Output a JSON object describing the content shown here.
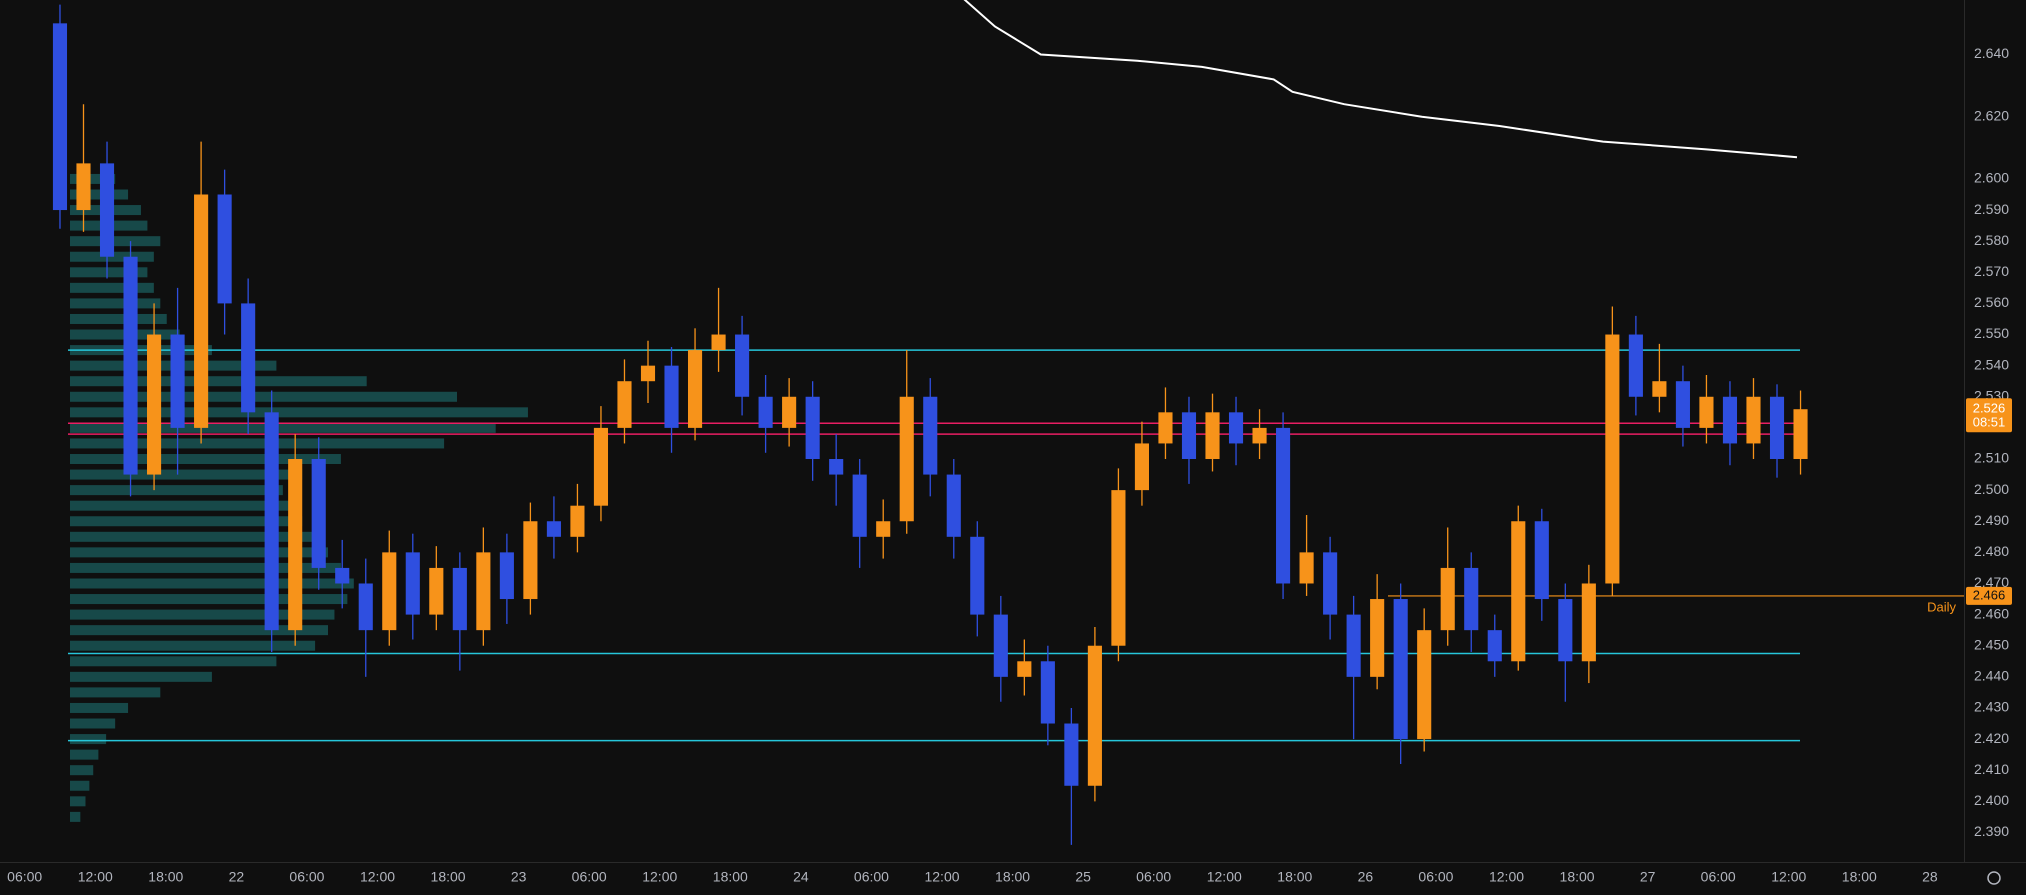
{
  "chart_data": {
    "type": "candlestick",
    "x": [
      9,
      11,
      13,
      15,
      17,
      19,
      21,
      23,
      25,
      27,
      29,
      31,
      33,
      35,
      37,
      39,
      41,
      43,
      45,
      47,
      49,
      51,
      53,
      55,
      57,
      59,
      61,
      63,
      65,
      67,
      69,
      71,
      73,
      75,
      77,
      79,
      81,
      83,
      85,
      87,
      89,
      91,
      93,
      95,
      97,
      99,
      101,
      103,
      105,
      107,
      109,
      111,
      113,
      115,
      117,
      119,
      121,
      123,
      125,
      127,
      129,
      131,
      133,
      135,
      137,
      139,
      141,
      143,
      145,
      147,
      149,
      151,
      153,
      155,
      157
    ],
    "open": [
      2.65,
      2.59,
      2.605,
      2.575,
      2.505,
      2.55,
      2.52,
      2.595,
      2.56,
      2.525,
      2.455,
      2.51,
      2.475,
      2.47,
      2.455,
      2.48,
      2.46,
      2.475,
      2.455,
      2.48,
      2.465,
      2.49,
      2.485,
      2.495,
      2.52,
      2.535,
      2.54,
      2.52,
      2.545,
      2.55,
      2.53,
      2.52,
      2.53,
      2.51,
      2.505,
      2.485,
      2.49,
      2.53,
      2.505,
      2.485,
      2.46,
      2.44,
      2.445,
      2.425,
      2.405,
      2.45,
      2.5,
      2.515,
      2.525,
      2.51,
      2.525,
      2.515,
      2.52,
      2.47,
      2.48,
      2.46,
      2.44,
      2.465,
      2.42,
      2.455,
      2.475,
      2.455,
      2.445,
      2.49,
      2.465,
      2.445,
      2.47,
      2.55,
      2.53,
      2.535,
      2.52,
      2.53,
      2.515,
      2.53,
      2.51
    ],
    "high": [
      2.656,
      2.624,
      2.612,
      2.58,
      2.56,
      2.565,
      2.612,
      2.603,
      2.568,
      2.532,
      2.518,
      2.517,
      2.484,
      2.478,
      2.487,
      2.486,
      2.482,
      2.48,
      2.488,
      2.486,
      2.496,
      2.498,
      2.502,
      2.527,
      2.542,
      2.548,
      2.546,
      2.552,
      2.565,
      2.556,
      2.537,
      2.536,
      2.535,
      2.518,
      2.51,
      2.497,
      2.545,
      2.536,
      2.51,
      2.49,
      2.466,
      2.452,
      2.45,
      2.43,
      2.456,
      2.507,
      2.522,
      2.533,
      2.53,
      2.531,
      2.53,
      2.526,
      2.525,
      2.492,
      2.485,
      2.466,
      2.473,
      2.47,
      2.462,
      2.488,
      2.48,
      2.46,
      2.495,
      2.494,
      2.47,
      2.476,
      2.559,
      2.556,
      2.547,
      2.54,
      2.537,
      2.535,
      2.536,
      2.534,
      2.532
    ],
    "low": [
      2.584,
      2.583,
      2.568,
      2.498,
      2.5,
      2.505,
      2.515,
      2.55,
      2.518,
      2.448,
      2.45,
      2.468,
      2.462,
      2.44,
      2.45,
      2.452,
      2.455,
      2.442,
      2.45,
      2.457,
      2.46,
      2.478,
      2.48,
      2.49,
      2.515,
      2.528,
      2.512,
      2.516,
      2.538,
      2.524,
      2.512,
      2.514,
      2.503,
      2.495,
      2.475,
      2.478,
      2.486,
      2.498,
      2.478,
      2.453,
      2.432,
      2.434,
      2.418,
      2.386,
      2.4,
      2.445,
      2.495,
      2.51,
      2.502,
      2.506,
      2.508,
      2.51,
      2.465,
      2.466,
      2.452,
      2.42,
      2.436,
      2.412,
      2.416,
      2.45,
      2.448,
      2.44,
      2.442,
      2.458,
      2.432,
      2.438,
      2.466,
      2.524,
      2.525,
      2.514,
      2.515,
      2.508,
      2.51,
      2.504,
      2.505
    ],
    "close": [
      2.59,
      2.605,
      2.575,
      2.505,
      2.55,
      2.52,
      2.595,
      2.56,
      2.525,
      2.455,
      2.51,
      2.475,
      2.47,
      2.455,
      2.48,
      2.46,
      2.475,
      2.455,
      2.48,
      2.465,
      2.49,
      2.485,
      2.495,
      2.52,
      2.535,
      2.54,
      2.52,
      2.545,
      2.55,
      2.53,
      2.52,
      2.53,
      2.51,
      2.505,
      2.485,
      2.49,
      2.53,
      2.505,
      2.485,
      2.46,
      2.44,
      2.445,
      2.425,
      2.405,
      2.45,
      2.5,
      2.515,
      2.525,
      2.51,
      2.525,
      2.515,
      2.52,
      2.47,
      2.48,
      2.46,
      2.44,
      2.465,
      2.42,
      2.455,
      2.475,
      2.455,
      2.445,
      2.49,
      2.465,
      2.445,
      2.47,
      2.55,
      2.53,
      2.535,
      2.52,
      2.53,
      2.515,
      2.53,
      2.51,
      2.526
    ],
    "up_color": "#f7931a",
    "down_color": "#2f4fe0",
    "xlim": [
      3.9,
      170.9
    ],
    "ylim": [
      2.3805,
      2.6575
    ],
    "grid": false,
    "xticks": [
      {
        "value": 6,
        "label": "06:00"
      },
      {
        "value": 12,
        "label": "12:00"
      },
      {
        "value": 18,
        "label": "18:00"
      },
      {
        "value": 24,
        "label": "22"
      },
      {
        "value": 30,
        "label": "06:00"
      },
      {
        "value": 36,
        "label": "12:00"
      },
      {
        "value": 42,
        "label": "18:00"
      },
      {
        "value": 48,
        "label": "23"
      },
      {
        "value": 54,
        "label": "06:00"
      },
      {
        "value": 60,
        "label": "12:00"
      },
      {
        "value": 66,
        "label": "18:00"
      },
      {
        "value": 72,
        "label": "24"
      },
      {
        "value": 78,
        "label": "06:00"
      },
      {
        "value": 84,
        "label": "12:00"
      },
      {
        "value": 90,
        "label": "18:00"
      },
      {
        "value": 96,
        "label": "25"
      },
      {
        "value": 102,
        "label": "06:00"
      },
      {
        "value": 108,
        "label": "12:00"
      },
      {
        "value": 114,
        "label": "18:00"
      },
      {
        "value": 120,
        "label": "26"
      },
      {
        "value": 126,
        "label": "06:00"
      },
      {
        "value": 132,
        "label": "12:00"
      },
      {
        "value": 138,
        "label": "18:00"
      },
      {
        "value": 144,
        "label": "27"
      },
      {
        "value": 150,
        "label": "06:00"
      },
      {
        "value": 156,
        "label": "12:00"
      },
      {
        "value": 162,
        "label": "18:00"
      },
      {
        "value": 168,
        "label": "28"
      }
    ],
    "yticks": [
      {
        "value": 2.39,
        "label": "2.390"
      },
      {
        "value": 2.4,
        "label": "2.400"
      },
      {
        "value": 2.41,
        "label": "2.410"
      },
      {
        "value": 2.42,
        "label": "2.420"
      },
      {
        "value": 2.43,
        "label": "2.430"
      },
      {
        "value": 2.44,
        "label": "2.440"
      },
      {
        "value": 2.45,
        "label": "2.450"
      },
      {
        "value": 2.46,
        "label": "2.460"
      },
      {
        "value": 2.47,
        "label": "2.470"
      },
      {
        "value": 2.48,
        "label": "2.480"
      },
      {
        "value": 2.49,
        "label": "2.490"
      },
      {
        "value": 2.5,
        "label": "2.500"
      },
      {
        "value": 2.51,
        "label": "2.510"
      },
      {
        "value": 2.52,
        "label": "2.520"
      },
      {
        "value": 2.53,
        "label": "2.530"
      },
      {
        "value": 2.54,
        "label": "2.540"
      },
      {
        "value": 2.55,
        "label": "2.550"
      },
      {
        "value": 2.56,
        "label": "2.560"
      },
      {
        "value": 2.57,
        "label": "2.570"
      },
      {
        "value": 2.58,
        "label": "2.580"
      },
      {
        "value": 2.59,
        "label": "2.590"
      },
      {
        "value": 2.6,
        "label": "2.600"
      },
      {
        "value": 2.62,
        "label": "2.620"
      },
      {
        "value": 2.64,
        "label": "2.640"
      }
    ],
    "vwap": {
      "color": "#ffffff",
      "x": [
        85.8,
        88.5,
        92.4,
        100.6,
        106.1,
        112.2,
        113.8,
        118.2,
        124.8,
        131.4,
        140.2,
        149,
        156.7
      ],
      "values": [
        2.658,
        2.649,
        2.64,
        2.638,
        2.636,
        2.632,
        2.628,
        2.624,
        2.62,
        2.617,
        2.612,
        2.6095,
        2.607
      ]
    },
    "levels": [
      {
        "value": 2.545,
        "color": "#26c6da"
      },
      {
        "value": 2.4475,
        "color": "#26c6da"
      },
      {
        "value": 2.4195,
        "color": "#26c6da"
      },
      {
        "value": 2.5215,
        "color": "#e91e63"
      },
      {
        "value": 2.518,
        "color": "#e91e63"
      }
    ],
    "daily_level": {
      "label": "Daily",
      "value": 2.466,
      "color": "#f7931a"
    },
    "last_price": {
      "value": 2.526,
      "countdown": "08:51",
      "color": "#f7931a"
    },
    "volume_profile": {
      "color": "#1f7a7a",
      "prices": [
        2.395,
        2.4,
        2.405,
        2.41,
        2.415,
        2.42,
        2.425,
        2.43,
        2.435,
        2.44,
        2.445,
        2.45,
        2.455,
        2.46,
        2.465,
        2.47,
        2.475,
        2.48,
        2.485,
        2.49,
        2.495,
        2.5,
        2.505,
        2.51,
        2.515,
        2.52,
        2.525,
        2.53,
        2.535,
        2.54,
        2.545,
        2.55,
        2.555,
        2.56,
        2.565,
        2.57,
        2.575,
        2.58,
        2.585,
        2.59,
        2.595,
        2.6
      ],
      "volumes": [
        8,
        12,
        15,
        18,
        22,
        28,
        35,
        45,
        70,
        110,
        160,
        190,
        200,
        205,
        215,
        220,
        210,
        200,
        190,
        180,
        170,
        165,
        180,
        210,
        290,
        330,
        355,
        300,
        230,
        160,
        110,
        85,
        75,
        70,
        65,
        60,
        65,
        70,
        60,
        55,
        45,
        35
      ]
    }
  }
}
